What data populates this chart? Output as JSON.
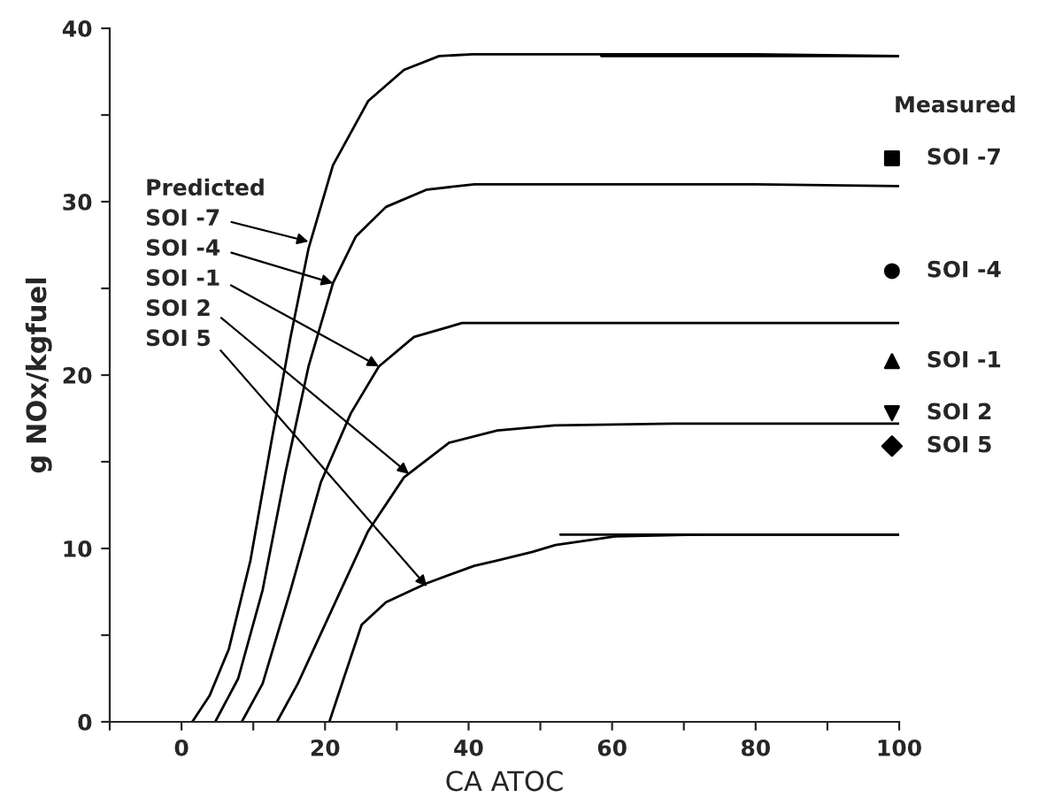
{
  "chart_data": {
    "type": "line",
    "xlabel": "CA ATOC",
    "ylabel": "g NOx/kgfuel",
    "xlim": [
      -10,
      100
    ],
    "ylim": [
      0,
      40
    ],
    "xticks": [
      {
        "value": -10,
        "label": null
      },
      0,
      {
        "value": 10,
        "label": null
      },
      20,
      {
        "value": 30,
        "label": null
      },
      40,
      {
        "value": 50,
        "label": null
      },
      60,
      {
        "value": 70,
        "label": null
      },
      80,
      {
        "value": 90,
        "label": null
      },
      100
    ],
    "yticks": [
      0,
      {
        "value": 5,
        "label": null
      },
      10,
      {
        "value": 15,
        "label": null
      },
      20,
      {
        "value": 25,
        "label": null
      },
      30,
      {
        "value": 35,
        "label": null
      },
      40
    ],
    "grid": false,
    "legend": false,
    "marker": "none",
    "line_style": "solid",
    "series": [
      {
        "color": "#000000",
        "x": [
          1.5,
          3.9,
          6.6,
          9.6,
          12.5,
          15.2,
          17.7,
          21.1,
          26,
          31,
          35.9,
          40.5,
          60,
          80,
          100
        ],
        "values": [
          0,
          1.5,
          4.2,
          9.3,
          16.1,
          22.2,
          27.3,
          32.1,
          35.8,
          37.6,
          38.4,
          38.5,
          38.5,
          38.5,
          38.4
        ]
      },
      {
        "color": "#000000",
        "x": [
          4.7,
          7.9,
          11.3,
          14.5,
          17.7,
          21.1,
          24.3,
          28.5,
          34.2,
          40.8,
          60,
          80,
          100
        ],
        "values": [
          0,
          2.5,
          7.6,
          14.4,
          20.5,
          25.3,
          28,
          29.7,
          30.7,
          31,
          31,
          31,
          30.9
        ]
      },
      {
        "color": "#000000",
        "x": [
          8.4,
          11.3,
          15.2,
          19.4,
          23.6,
          27.5,
          32.4,
          39.1,
          48.9,
          70,
          100
        ],
        "values": [
          0,
          2.2,
          7.6,
          13.8,
          17.8,
          20.5,
          22.2,
          23,
          23,
          23,
          23
        ]
      },
      {
        "color": "#000000",
        "x": [
          13.3,
          16.2,
          21.1,
          26,
          31,
          37.3,
          44,
          52,
          68.5,
          100
        ],
        "values": [
          0,
          2.2,
          6.6,
          11,
          14.1,
          16.1,
          16.8,
          17.1,
          17.2,
          17.2
        ]
      },
      {
        "color": "#000000",
        "x": [
          20.6,
          22.6,
          25.1,
          28.5,
          34.2,
          40.8,
          44,
          48.9,
          52.1,
          60.4,
          72.7,
          100
        ],
        "values": [
          0,
          2.5,
          5.6,
          6.9,
          8,
          9,
          9.3,
          9.8,
          10.2,
          10.7,
          10.8,
          10.8
        ]
      },
      {
        "color": "#000000",
        "x": [
          58.5,
          100
        ],
        "values": [
          38.4,
          38.4
        ]
      },
      {
        "color": "#000000",
        "x": [
          52.8,
          100
        ],
        "values": [
          10.8,
          10.8
        ]
      },
      {
        "type": "scatter",
        "name": "SOI -7",
        "color": "#000000",
        "marker": "square",
        "x": [
          99
        ],
        "values": [
          32.5
        ]
      },
      {
        "type": "scatter",
        "name": "SOI -4",
        "color": "#000000",
        "marker": "circle",
        "x": [
          99
        ],
        "values": [
          26
        ]
      },
      {
        "type": "scatter",
        "name": "SOI -1",
        "color": "#000000",
        "marker": "triangle",
        "x": [
          99
        ],
        "values": [
          20.8
        ]
      },
      {
        "type": "scatter",
        "name": "SOI 2",
        "color": "#000000",
        "marker": "triangle_down",
        "x": [
          99
        ],
        "values": [
          17.8
        ]
      },
      {
        "type": "scatter",
        "name": "SOI 5",
        "color": "#000000",
        "marker": "diamond",
        "x": [
          99
        ],
        "values": [
          15.9
        ]
      }
    ],
    "annotations": [
      "Predicted",
      {
        "text": "SOI -7",
        "x": 17.7,
        "y": 27.7
      },
      {
        "text": "SOI -4",
        "x": 21.1,
        "y": 25.3
      },
      {
        "text": "SOI -1",
        "x": 27.5,
        "y": 20.5
      },
      {
        "text": "SOI 2",
        "x": 31.7,
        "y": 14.3
      },
      {
        "text": "SOI 5",
        "x": 34.2,
        "y": 7.8
      },
      "Measured"
    ]
  }
}
